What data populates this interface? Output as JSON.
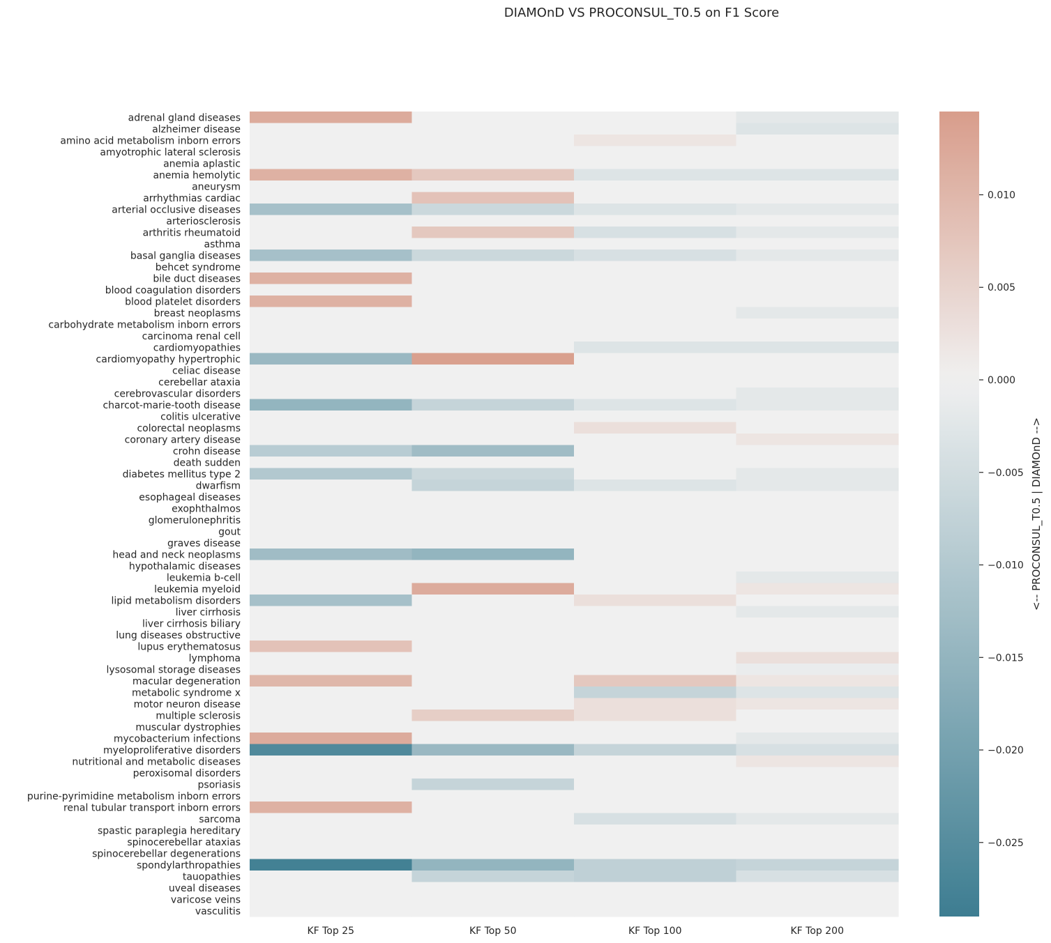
{
  "chart_data": {
    "type": "heatmap",
    "title": "DIAMOnD VS PROCONSUL_T0.5 on F1 Score",
    "columns": [
      "KF Top 25",
      "KF Top 50",
      "KF Top 100",
      "KF Top 200"
    ],
    "rows": [
      "adrenal gland diseases",
      "alzheimer disease",
      "amino acid metabolism inborn errors",
      "amyotrophic lateral sclerosis",
      "anemia aplastic",
      "anemia hemolytic",
      "aneurysm",
      "arrhythmias cardiac",
      "arterial occlusive diseases",
      "arteriosclerosis",
      "arthritis rheumatoid",
      "asthma",
      "basal ganglia diseases",
      "behcet syndrome",
      "bile duct diseases",
      "blood coagulation disorders",
      "blood platelet disorders",
      "breast neoplasms",
      "carbohydrate metabolism inborn errors",
      "carcinoma renal cell",
      "cardiomyopathies",
      "cardiomyopathy hypertrophic",
      "celiac disease",
      "cerebellar ataxia",
      "cerebrovascular disorders",
      "charcot-marie-tooth disease",
      "colitis ulcerative",
      "colorectal neoplasms",
      "coronary artery disease",
      "crohn disease",
      "death sudden",
      "diabetes mellitus type 2",
      "dwarfism",
      "esophageal diseases",
      "exophthalmos",
      "glomerulonephritis",
      "gout",
      "graves disease",
      "head and neck neoplasms",
      "hypothalamic diseases",
      "leukemia b-cell",
      "leukemia myeloid",
      "lipid metabolism disorders",
      "liver cirrhosis",
      "liver cirrhosis biliary",
      "lung diseases obstructive",
      "lupus erythematosus",
      "lymphoma",
      "lysosomal storage diseases",
      "macular degeneration",
      "metabolic syndrome x",
      "motor neuron disease",
      "multiple sclerosis",
      "muscular dystrophies",
      "mycobacterium infections",
      "myeloproliferative disorders",
      "nutritional and metabolic diseases",
      "peroxisomal disorders",
      "psoriasis",
      "purine-pyrimidine metabolism inborn errors",
      "renal tubular transport inborn errors",
      "sarcoma",
      "spastic paraplegia hereditary",
      "spinocerebellar ataxias",
      "spinocerebellar degenerations",
      "spondylarthropathies",
      "tauopathies",
      "uveal diseases",
      "varicose veins",
      "vasculitis"
    ],
    "values": [
      [
        0.012,
        0,
        0,
        -0.002
      ],
      [
        0,
        0,
        0,
        -0.003
      ],
      [
        0,
        0,
        0.002,
        0
      ],
      [
        0,
        0,
        0,
        0
      ],
      [
        0,
        0,
        0,
        0
      ],
      [
        0.011,
        0.007,
        -0.003,
        -0.003
      ],
      [
        0,
        0,
        0,
        0
      ],
      [
        0,
        0.008,
        0,
        0
      ],
      [
        -0.012,
        -0.006,
        -0.003,
        -0.002
      ],
      [
        0,
        0,
        0,
        0
      ],
      [
        0,
        0.007,
        -0.004,
        -0.002
      ],
      [
        0,
        0,
        0,
        0
      ],
      [
        -0.012,
        -0.006,
        -0.004,
        -0.002
      ],
      [
        0,
        0,
        0,
        0
      ],
      [
        0.011,
        0,
        0,
        0
      ],
      [
        0,
        0,
        0,
        0
      ],
      [
        0.011,
        0,
        0,
        0
      ],
      [
        0,
        0,
        0,
        -0.002
      ],
      [
        0,
        0,
        0,
        0
      ],
      [
        0,
        0,
        0,
        0
      ],
      [
        0,
        0,
        -0.003,
        -0.003
      ],
      [
        -0.014,
        0.014,
        0,
        0
      ],
      [
        0,
        0,
        0,
        0
      ],
      [
        0,
        0,
        0,
        0
      ],
      [
        0,
        0,
        0,
        -0.002
      ],
      [
        -0.015,
        -0.007,
        -0.003,
        -0.002
      ],
      [
        0,
        0,
        0,
        0
      ],
      [
        0,
        0,
        0.003,
        0
      ],
      [
        0,
        0,
        0,
        0.002
      ],
      [
        -0.009,
        -0.013,
        0,
        0
      ],
      [
        0,
        0,
        0,
        0
      ],
      [
        -0.01,
        -0.006,
        0,
        -0.002
      ],
      [
        0,
        -0.007,
        -0.003,
        -0.002
      ],
      [
        0,
        0,
        0,
        0
      ],
      [
        0,
        0,
        0,
        0
      ],
      [
        0,
        0,
        0,
        0
      ],
      [
        0,
        0,
        0,
        0
      ],
      [
        0,
        0,
        0,
        0
      ],
      [
        -0.013,
        -0.015,
        0,
        0
      ],
      [
        0,
        0,
        0,
        0
      ],
      [
        0,
        0,
        0,
        -0.002
      ],
      [
        0,
        0.012,
        0,
        0.002
      ],
      [
        -0.012,
        0,
        0.003,
        0
      ],
      [
        0,
        0,
        0,
        -0.002
      ],
      [
        0,
        0,
        0,
        0
      ],
      [
        0,
        0,
        0,
        0
      ],
      [
        0.008,
        0,
        0,
        0
      ],
      [
        0,
        0,
        0,
        0.003
      ],
      [
        0,
        0,
        0,
        -0.001
      ],
      [
        0.01,
        0,
        0.007,
        0.002
      ],
      [
        0,
        0,
        -0.007,
        -0.003
      ],
      [
        0,
        0,
        0.003,
        0.002
      ],
      [
        0,
        0.006,
        0.003,
        0
      ],
      [
        0,
        0,
        0,
        0
      ],
      [
        0.012,
        0,
        0,
        -0.002
      ],
      [
        -0.026,
        -0.014,
        -0.007,
        -0.004
      ],
      [
        0,
        0,
        0,
        0.002
      ],
      [
        0,
        0,
        0,
        0
      ],
      [
        0,
        -0.007,
        0,
        0
      ],
      [
        0,
        0,
        0,
        0
      ],
      [
        0.011,
        0,
        0,
        0
      ],
      [
        0,
        0,
        -0.004,
        -0.002
      ],
      [
        0,
        0,
        0,
        0
      ],
      [
        0,
        0,
        0,
        0
      ],
      [
        0,
        0,
        0,
        0
      ],
      [
        -0.028,
        -0.015,
        -0.008,
        -0.007
      ],
      [
        0,
        -0.007,
        -0.008,
        -0.004
      ],
      [
        0,
        0,
        0,
        0
      ],
      [
        0,
        0,
        0,
        0
      ],
      [
        0,
        0,
        0,
        0
      ]
    ],
    "vmin": -0.029,
    "vmax": 0.0145,
    "colorbar": {
      "label": "<-- PROCONSUL_T0.5 | DIAMOnD -->",
      "ticks": [
        0.01,
        0.005,
        0.0,
        -0.005,
        -0.01,
        -0.015,
        -0.02,
        -0.025
      ],
      "tick_labels": [
        "0.010",
        "0.005",
        "0.000",
        "−0.005",
        "−0.010",
        "−0.015",
        "−0.020",
        "−0.025"
      ]
    },
    "colormap": {
      "negative_end": "#3d7d91",
      "center": "#f0f0f0",
      "positive_end": "#d89d8b"
    },
    "grid": false
  }
}
